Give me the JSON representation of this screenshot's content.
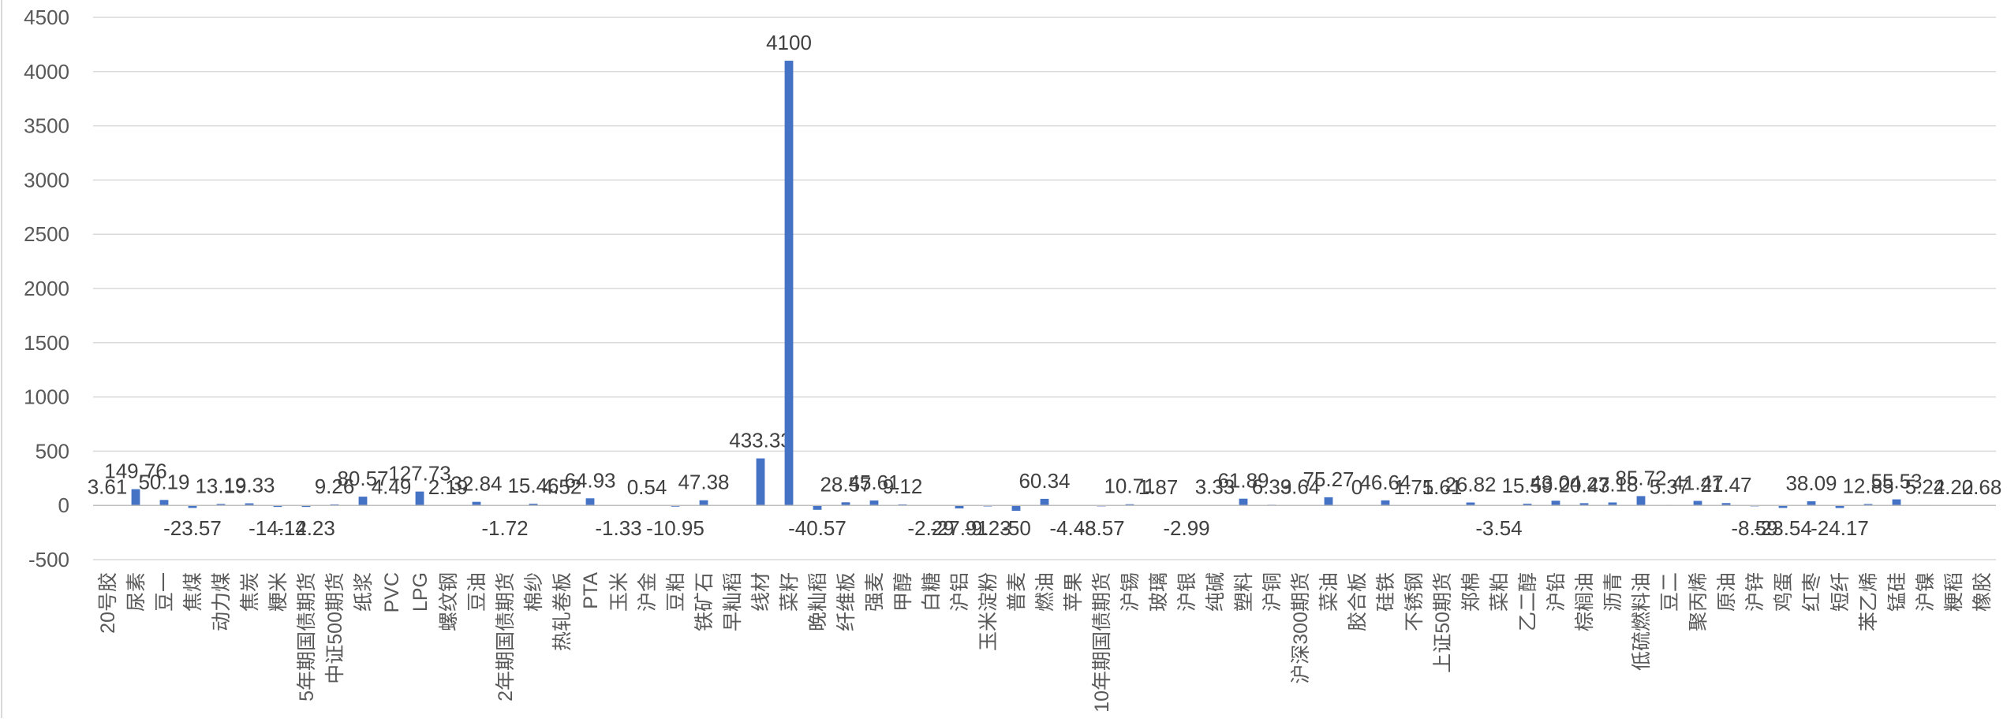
{
  "chart_data": {
    "type": "bar",
    "title": "",
    "xlabel": "",
    "ylabel": "",
    "ylim": [
      -500,
      4500
    ],
    "yticks": [
      -500,
      0,
      500,
      1000,
      1500,
      2000,
      2500,
      3000,
      3500,
      4000,
      4500
    ],
    "grid": true,
    "legend": "none",
    "bar_color": "#4472C4",
    "categories": [
      "20号胶",
      "尿素",
      "豆一",
      "焦煤",
      "动力煤",
      "焦炭",
      "粳米",
      "5年期国债期货",
      "中证500期货",
      "纸浆",
      "PVC",
      "LPG",
      "螺纹钢",
      "豆油",
      "2年期国债期货",
      "棉纱",
      "热轧卷板",
      "PTA",
      "玉米",
      "沪金",
      "豆粕",
      "铁矿石",
      "早籼稻",
      "线材",
      "菜籽",
      "晚籼稻",
      "纤维板",
      "强麦",
      "甲醇",
      "白糖",
      "沪铝",
      "玉米淀粉",
      "普麦",
      "燃油",
      "苹果",
      "10年期国债期货",
      "沪锡",
      "玻璃",
      "沪银",
      "纯碱",
      "塑料",
      "沪铜",
      "沪深300期货",
      "菜油",
      "胶合板",
      "硅铁",
      "不锈钢",
      "上证50期货",
      "郑棉",
      "菜粕",
      "乙二醇",
      "沪铅",
      "棕榈油",
      "沥青",
      "低硫燃料油",
      "豆二",
      "聚丙烯",
      "原油",
      "沪锌",
      "鸡蛋",
      "红枣",
      "短纤",
      "苯乙烯",
      "锰硅",
      "沪镍",
      "粳稻",
      "橡胶"
    ],
    "values": [
      3.61,
      149.76,
      50.19,
      -23.57,
      13.19,
      19.33,
      -14.12,
      -14.23,
      9.26,
      80.57,
      4.49,
      127.73,
      2.19,
      32.84,
      -1.72,
      15.46,
      4.52,
      64.93,
      -1.33,
      0.54,
      -10.95,
      47.38,
      0,
      433.33,
      4100,
      -40.57,
      28.57,
      45.61,
      9.12,
      -2.29,
      -27.91,
      -9.23,
      -50,
      60.34,
      -4.48,
      -8.57,
      10.71,
      1.87,
      -2.99,
      3.33,
      61.89,
      6.39,
      3.64,
      75.27,
      0,
      46.64,
      1.75,
      1.61,
      26.82,
      -3.54,
      15.59,
      43.04,
      20.43,
      27.18,
      85.72,
      5.37,
      41.47,
      21.47,
      -8.59,
      -23.54,
      38.09,
      -24.17,
      12.85,
      55.53,
      5.24,
      2.22,
      0.68
    ],
    "labels": [
      "3.61",
      "149.76",
      "50.19",
      "-23.57",
      "13.19",
      "19.33",
      "-14.12",
      "-14.23",
      "9.26",
      "80.57",
      "4.49",
      "127.73",
      "2.19",
      "32.84",
      "-1.72",
      "15.46",
      "4.52",
      "64.93",
      "-1.33",
      "0.54",
      "-10.95",
      "47.38",
      "",
      "433.33",
      "4100",
      "-40.57",
      "28.57",
      "45.61",
      "9.12",
      "-2.29",
      "-27.91",
      "-9.23",
      "-50",
      "60.34",
      "-4.48",
      "-8.57",
      "10.71",
      "1.87",
      "-2.99",
      "3.33",
      "61.89",
      "6.39",
      "3.64",
      "75.27",
      "0",
      "46.64",
      "1.75",
      "1.61",
      "26.82",
      "-3.54",
      "15.59",
      "43.04",
      "20.43",
      "27.18",
      "85.72",
      "5.37",
      "41.47",
      "21.47",
      "-8.59",
      "-23.54",
      "38.09",
      "-24.17",
      "12.85",
      "55.53",
      "5.24",
      "2.22",
      "0.68"
    ]
  }
}
